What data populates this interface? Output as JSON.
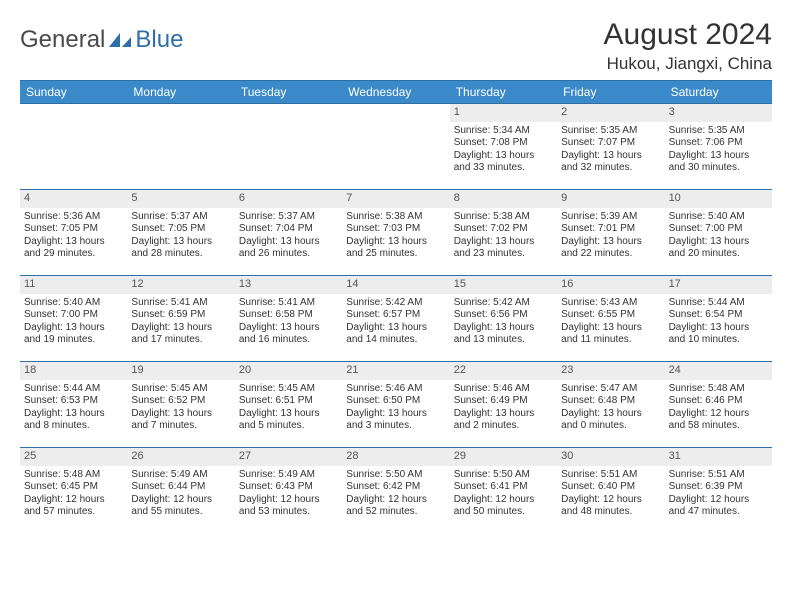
{
  "logo": {
    "text1": "General",
    "text2": "Blue"
  },
  "title": "August 2024",
  "location": "Hukou, Jiangxi, China",
  "colors": {
    "header_bg": "#3a8ac9",
    "rule": "#2f6fa8",
    "daynum_bg": "#ededed",
    "text": "#333333"
  },
  "daysOfWeek": [
    "Sunday",
    "Monday",
    "Tuesday",
    "Wednesday",
    "Thursday",
    "Friday",
    "Saturday"
  ],
  "firstDowIndex": 4,
  "days": [
    {
      "n": 1,
      "sunrise": "5:34 AM",
      "sunset": "7:08 PM",
      "daylight": "13 hours and 33 minutes."
    },
    {
      "n": 2,
      "sunrise": "5:35 AM",
      "sunset": "7:07 PM",
      "daylight": "13 hours and 32 minutes."
    },
    {
      "n": 3,
      "sunrise": "5:35 AM",
      "sunset": "7:06 PM",
      "daylight": "13 hours and 30 minutes."
    },
    {
      "n": 4,
      "sunrise": "5:36 AM",
      "sunset": "7:05 PM",
      "daylight": "13 hours and 29 minutes."
    },
    {
      "n": 5,
      "sunrise": "5:37 AM",
      "sunset": "7:05 PM",
      "daylight": "13 hours and 28 minutes."
    },
    {
      "n": 6,
      "sunrise": "5:37 AM",
      "sunset": "7:04 PM",
      "daylight": "13 hours and 26 minutes."
    },
    {
      "n": 7,
      "sunrise": "5:38 AM",
      "sunset": "7:03 PM",
      "daylight": "13 hours and 25 minutes."
    },
    {
      "n": 8,
      "sunrise": "5:38 AM",
      "sunset": "7:02 PM",
      "daylight": "13 hours and 23 minutes."
    },
    {
      "n": 9,
      "sunrise": "5:39 AM",
      "sunset": "7:01 PM",
      "daylight": "13 hours and 22 minutes."
    },
    {
      "n": 10,
      "sunrise": "5:40 AM",
      "sunset": "7:00 PM",
      "daylight": "13 hours and 20 minutes."
    },
    {
      "n": 11,
      "sunrise": "5:40 AM",
      "sunset": "7:00 PM",
      "daylight": "13 hours and 19 minutes."
    },
    {
      "n": 12,
      "sunrise": "5:41 AM",
      "sunset": "6:59 PM",
      "daylight": "13 hours and 17 minutes."
    },
    {
      "n": 13,
      "sunrise": "5:41 AM",
      "sunset": "6:58 PM",
      "daylight": "13 hours and 16 minutes."
    },
    {
      "n": 14,
      "sunrise": "5:42 AM",
      "sunset": "6:57 PM",
      "daylight": "13 hours and 14 minutes."
    },
    {
      "n": 15,
      "sunrise": "5:42 AM",
      "sunset": "6:56 PM",
      "daylight": "13 hours and 13 minutes."
    },
    {
      "n": 16,
      "sunrise": "5:43 AM",
      "sunset": "6:55 PM",
      "daylight": "13 hours and 11 minutes."
    },
    {
      "n": 17,
      "sunrise": "5:44 AM",
      "sunset": "6:54 PM",
      "daylight": "13 hours and 10 minutes."
    },
    {
      "n": 18,
      "sunrise": "5:44 AM",
      "sunset": "6:53 PM",
      "daylight": "13 hours and 8 minutes."
    },
    {
      "n": 19,
      "sunrise": "5:45 AM",
      "sunset": "6:52 PM",
      "daylight": "13 hours and 7 minutes."
    },
    {
      "n": 20,
      "sunrise": "5:45 AM",
      "sunset": "6:51 PM",
      "daylight": "13 hours and 5 minutes."
    },
    {
      "n": 21,
      "sunrise": "5:46 AM",
      "sunset": "6:50 PM",
      "daylight": "13 hours and 3 minutes."
    },
    {
      "n": 22,
      "sunrise": "5:46 AM",
      "sunset": "6:49 PM",
      "daylight": "13 hours and 2 minutes."
    },
    {
      "n": 23,
      "sunrise": "5:47 AM",
      "sunset": "6:48 PM",
      "daylight": "13 hours and 0 minutes."
    },
    {
      "n": 24,
      "sunrise": "5:48 AM",
      "sunset": "6:46 PM",
      "daylight": "12 hours and 58 minutes."
    },
    {
      "n": 25,
      "sunrise": "5:48 AM",
      "sunset": "6:45 PM",
      "daylight": "12 hours and 57 minutes."
    },
    {
      "n": 26,
      "sunrise": "5:49 AM",
      "sunset": "6:44 PM",
      "daylight": "12 hours and 55 minutes."
    },
    {
      "n": 27,
      "sunrise": "5:49 AM",
      "sunset": "6:43 PM",
      "daylight": "12 hours and 53 minutes."
    },
    {
      "n": 28,
      "sunrise": "5:50 AM",
      "sunset": "6:42 PM",
      "daylight": "12 hours and 52 minutes."
    },
    {
      "n": 29,
      "sunrise": "5:50 AM",
      "sunset": "6:41 PM",
      "daylight": "12 hours and 50 minutes."
    },
    {
      "n": 30,
      "sunrise": "5:51 AM",
      "sunset": "6:40 PM",
      "daylight": "12 hours and 48 minutes."
    },
    {
      "n": 31,
      "sunrise": "5:51 AM",
      "sunset": "6:39 PM",
      "daylight": "12 hours and 47 minutes."
    }
  ],
  "labels": {
    "sunrise": "Sunrise: ",
    "sunset": "Sunset: ",
    "daylight": "Daylight: "
  }
}
